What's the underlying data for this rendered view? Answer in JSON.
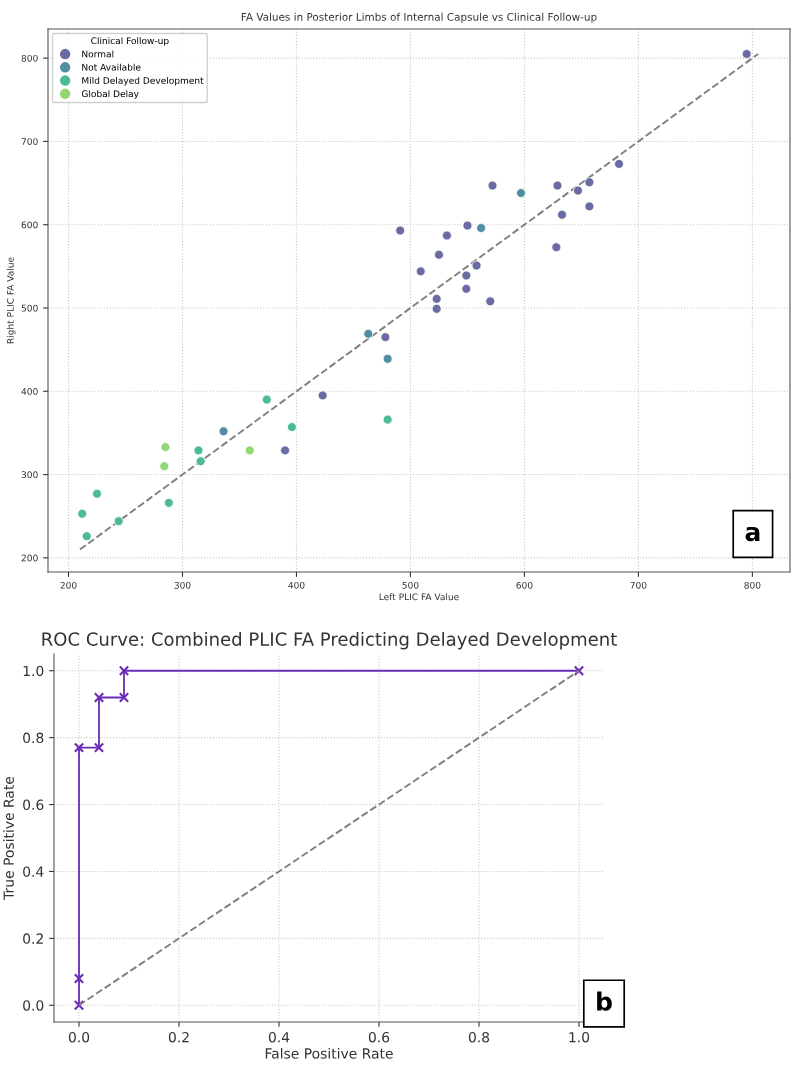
{
  "chart_data": [
    {
      "type": "scatter",
      "title": "FA Values in Posterior Limbs of Internal Capsule vs Clinical Follow-up",
      "xlabel": "Left PLIC FA Value",
      "ylabel": "Right PLIC FA Value",
      "legend_title": "Clinical Follow-up",
      "legend": "top left",
      "grid": true,
      "marker": "circle",
      "xlim": [
        182,
        833
      ],
      "ylim": [
        183,
        835
      ],
      "xticks": [
        200,
        300,
        400,
        500,
        600,
        700,
        800
      ],
      "yticks": [
        200,
        300,
        400,
        500,
        600,
        700,
        800
      ],
      "annotations": [
        "a"
      ],
      "series": [
        {
          "name": "Normal",
          "color": "#6b6ba3",
          "x": [
            572,
            629,
            647,
            657,
            683,
            633,
            657,
            550,
            532,
            491,
            525,
            509,
            628,
            558,
            549,
            549,
            523,
            523,
            570,
            795,
            478,
            423,
            390
          ],
          "values": [
            647,
            647,
            641,
            651,
            673,
            612,
            622,
            599,
            587,
            593,
            564,
            544,
            573,
            551,
            539,
            523,
            511,
            499,
            508,
            805,
            465,
            395,
            329
          ]
        },
        {
          "name": "Not Available",
          "color": "#4f8ea3",
          "x": [
            597,
            562,
            463,
            480,
            336
          ],
          "values": [
            638,
            596,
            469,
            439,
            352
          ]
        },
        {
          "name": "Mild Delayed Development",
          "color": "#4dba97",
          "x": [
            480,
            374,
            396,
            314,
            316,
            288,
            212,
            225,
            216,
            244
          ],
          "values": [
            366,
            390,
            357,
            329,
            316,
            266,
            253,
            277,
            226,
            244
          ]
        },
        {
          "name": "Global Delay",
          "color": "#94d673",
          "x": [
            359,
            285,
            284
          ],
          "values": [
            329,
            333,
            310
          ]
        },
        {
          "type": "line",
          "color": "#808080",
          "marker": "none",
          "line_style": "dashed",
          "x": [
            210,
            805
          ],
          "values": [
            210,
            805
          ]
        }
      ]
    },
    {
      "type": "line",
      "title": "ROC Curve: Combined PLIC FA Predicting Delayed Development",
      "xlabel": "False Positive Rate",
      "ylabel": "True Positive Rate",
      "grid": true,
      "xlim": [
        -0.05,
        1.05
      ],
      "ylim": [
        -0.05,
        1.05
      ],
      "xticks": [
        {
          "value": 0,
          "label": "0.0"
        },
        0.2,
        0.4,
        0.6,
        0.8,
        {
          "value": 1,
          "label": "1.0"
        }
      ],
      "yticks": [
        {
          "value": 0,
          "label": "0.0"
        },
        0.2,
        0.4,
        0.6,
        0.8,
        {
          "value": 1,
          "label": "1.0"
        }
      ],
      "annotations": [
        "b"
      ],
      "series": [
        {
          "color": "#6a2bb8",
          "marker": "cross",
          "line_style": "solid",
          "x": [
            0,
            0,
            0,
            0.04,
            0.04,
            0.09,
            0.09,
            1
          ],
          "values": [
            0,
            0.08,
            0.77,
            0.77,
            0.92,
            0.92,
            1,
            1
          ]
        },
        {
          "color": "#808080",
          "marker": "none",
          "line_style": "dashed",
          "x": [
            0,
            1
          ],
          "values": [
            0,
            1
          ]
        }
      ]
    }
  ]
}
